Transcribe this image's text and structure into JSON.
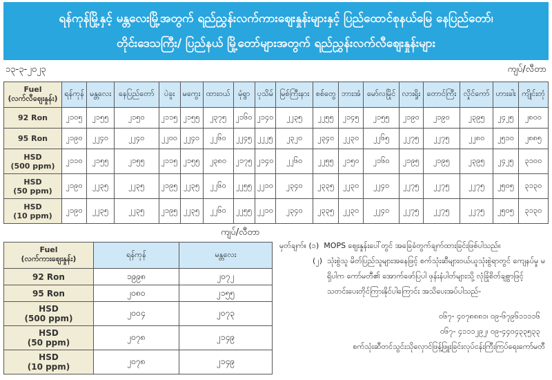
{
  "header": {
    "title_line1": "ရန်ကုန်မြို့နှင့် မန္တလေးမြို့အတွက် ရည်ညွှန်းလက်ကားဈေးနှုန်းများနှင့် ပြည်ထောင်စုနယ်မြေ နေပြည်တော်၊",
    "title_line2": "တိုင်းဒေသကြီး/ ပြည်နယ် မြို့တော်များအတွက် ရည်ညွှန်းလက်လီဈေးနှုန်းများ",
    "date": "၁၃-၃-၂၀၂၃",
    "unit": "ကျပ်/လီတာ",
    "accent": "#2aa6de"
  },
  "retail": {
    "fuel_header": [
      "Fuel",
      "(လက်လီဈေးနှုန်း)"
    ],
    "cities": [
      "ရန်ကုန်",
      "မန္တလေး",
      "နေပြည်တော်",
      "ပဲခူး",
      "မကွေး",
      "ထားဝယ်",
      "မုံရွာ",
      "ပုသိမ်",
      "မြစ်ကြီးနား",
      "စစ်တွေ",
      "ဘားအံ",
      "မော်လမြိုင်",
      "လားရှိုး",
      "တောင်ကြီး",
      "လှိုင်ကော်",
      "ဟားခါး",
      "ကျိုင်းတုံ"
    ],
    "rows": [
      {
        "fuel": [
          "92 Ron"
        ],
        "values": [
          "၂၁၀၅",
          "၂၁၅၅",
          "၂၁၅၀",
          "၂၁၁၅",
          "၂၁၅၅",
          "၂၃၇၅",
          "၂၁၆၀",
          "၂၁၄၀",
          "၂၂၃၅",
          "၂၂၅၅",
          "၂၁၄၅",
          "၂၁၅၅",
          "၂၁၉၀",
          "၂၁၉၀",
          "၂၃၉၅",
          "၂၄၂၅",
          "၂၈၀၀"
        ]
      },
      {
        "fuel": [
          "95 Ron"
        ],
        "values": [
          "၂၁၉၀",
          "၂၂၄၀",
          "၂၂၄၀",
          "၂၂၀၀",
          "၂၂၄၀",
          "၂၂၆၀",
          "၂၂၄၅",
          "၂၂၂၅",
          "၂၃၂၀",
          "၂၃၄၀",
          "၂၂၃၀",
          "၂၂၆၅",
          "၂၂၇၅",
          "၂၂၇၅",
          "၂၂၈၀",
          "၂၅၁၀",
          "၂၈၈၅"
        ]
      },
      {
        "fuel": [
          "HSD",
          "(500 ppm)"
        ],
        "values": [
          "၂၁၁၀",
          "၂၁၅၅",
          "၂၁၅၅",
          "၂၁၁၅",
          "၂၁၅၅",
          "၂၃၈၀",
          "၂၁၇၅",
          "၂၁၄၀",
          "၂၂၆၀",
          "၂၂၅၅",
          "၂၁၅၀",
          "၂၁၆၀",
          "၂၁၉၅",
          "၂၁၉၅",
          "၂၃၉၅",
          "၂၄၂၅",
          "၃၁၀၀"
        ]
      },
      {
        "fuel": [
          "HSD",
          "(50 ppm)"
        ],
        "values": [
          "၂၁၉၀",
          "၂၂၃၅",
          "၂၂၃၅",
          "၂၁၉၅",
          "၂၂၃၅",
          "၂၂၆၀",
          "၂၂၅၅",
          "၂၂၁၀",
          "၂၃၄၀",
          "၂၃၃၅",
          "၂၂၃၀",
          "၂၂၄၀",
          "၂၂၇၅",
          "၂၂၇၅",
          "၂၂၇၅",
          "၂၅၀၅",
          "၃၁၃၀"
        ]
      },
      {
        "fuel": [
          "HSD",
          "(10 ppm)"
        ],
        "values": [
          "၂၁၉၀",
          "၂၂၃၅",
          "၂၂၃၅",
          "၂၁၉၅",
          "၂၂၃၅",
          "၂၂၆၀",
          "၂၂၅၅",
          "၂၂၁၀",
          "၂၃၄၀",
          "၂၃၃၅",
          "၂၂၃၀",
          "၂၂၄၀",
          "၂၂၇၅",
          "၂၂၇၅",
          "၂၂၇၅",
          "၂၅၀၅",
          "၃၁၃၀"
        ]
      }
    ]
  },
  "wholesale": {
    "unit": "ကျပ်/လီတာ",
    "fuel_header": [
      "Fuel",
      "(လက်ကားဈေးနှုန်း)"
    ],
    "cities": [
      "ရန်ကုန်",
      "မန္တလေး"
    ],
    "rows": [
      {
        "fuel": [
          "92 Ron"
        ],
        "values": [
          "၁၉၉၈",
          "၂၀၇၂"
        ]
      },
      {
        "fuel": [
          "95 Ron"
        ],
        "values": [
          "၂၀၈၀",
          "၂၁၅၅"
        ]
      },
      {
        "fuel": [
          "HSD",
          "(500 ppm)"
        ],
        "values": [
          "၂၀၀၄",
          "၂၀၇၃"
        ]
      },
      {
        "fuel": [
          "HSD",
          "(50 ppm)"
        ],
        "values": [
          "၂၀၇၈",
          "၂၁၄၉"
        ]
      },
      {
        "fuel": [
          "HSD",
          "(10 ppm)"
        ],
        "values": [
          "၂၀၇၈",
          "၂၁၄၉"
        ]
      }
    ]
  },
  "notes": {
    "label": "မှတ်ချက်။",
    "n1_num": "(၁)",
    "n1": "MOPS ဈေးနှုန်းပေါ်တွင် အခြေခံတွက်ချက်ထားခြင်းဖြစ်ပါသည်။",
    "n2_num": "(၂)",
    "n2": "သုံးစွဲသူ မိတ်ပြည်သူများအနေဖြင့် စက်သုံးဆီများဝယ်ယူသုံးစွဲရာတွင် ကျေနပ်မှု မရှိပါက ကော်မတီ၏ အောက်ဖော်ပြပါ ဖုန်းနံပါတ်များသို့ လုံခြုံစိတ်ချစွာဖြင့် သတင်းပေးတိုင်ကြားနိုင်ပါကြောင်း အသိပေးအပ်ပါသည်-",
    "phone1": "၀၆၇- ၄၀၇၈၈၈၁၊ ၀၉-၆၇၉၆၁၁၁၁၆",
    "phone2": "၀၆၇- ၄၁၁၁၂၉၂၊ ၀၉-၄၄၀၄၃၃၅၃၃",
    "org": "စက်သုံးဆီတင်သွင်းသိုလှောင်ဖြန့်ဖြူးခြင်းလုပ်ငန်းကြီးကြပ်ရေးကော်မတီ"
  }
}
